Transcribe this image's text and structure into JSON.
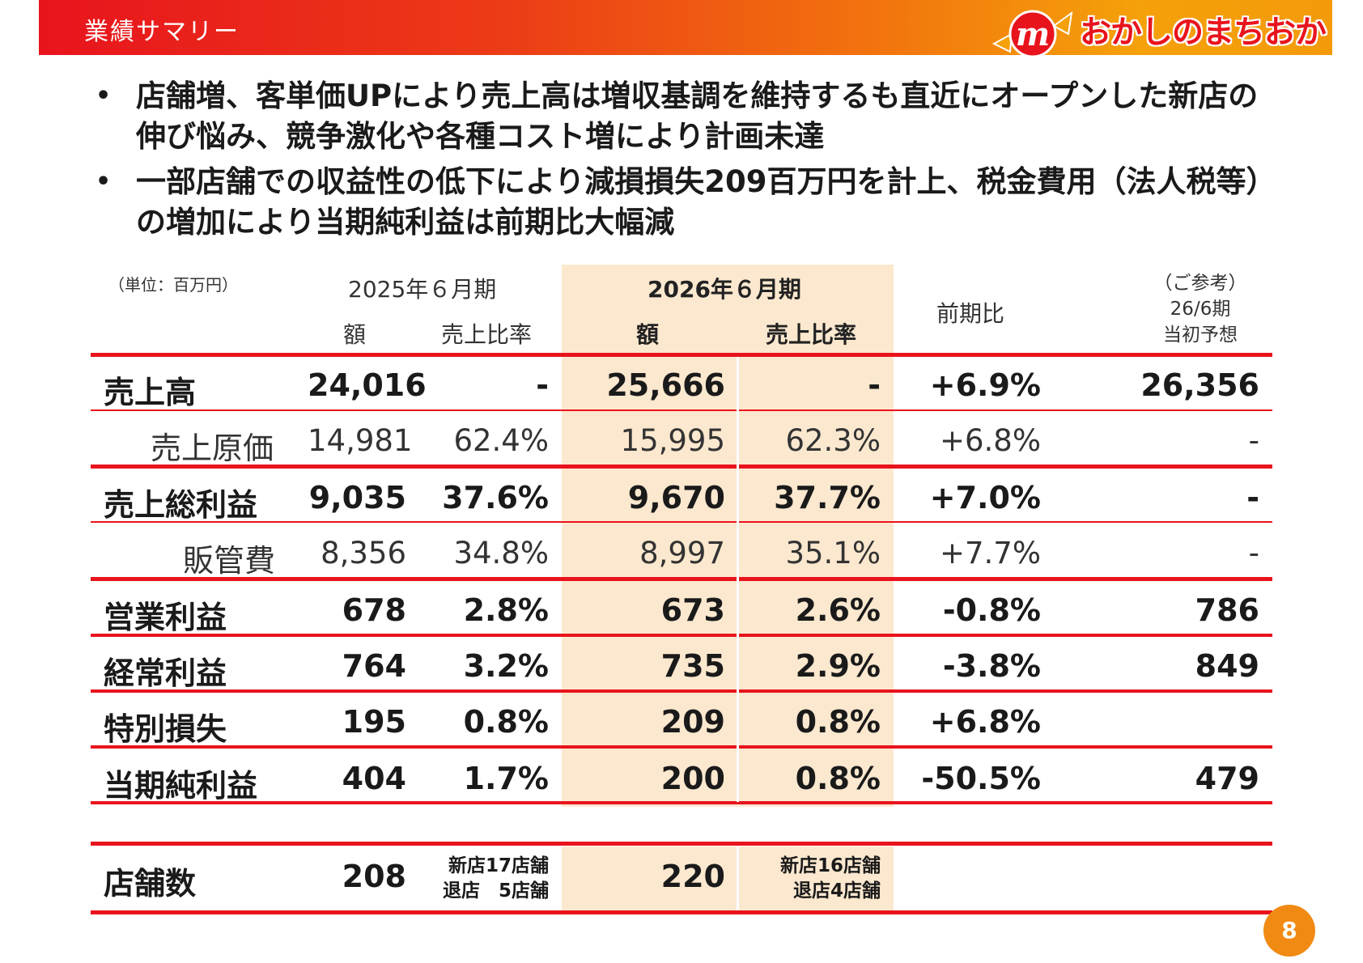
{
  "header": {
    "title": "業績サマリー",
    "logo_text": "おかしのまちおか",
    "logo_mark": "m"
  },
  "bullets": [
    "店舗増、客単価UPにより売上高は増収基調を維持するも直近にオープンした新店の伸び悩み、競争激化や各種コスト増により計画未達",
    "一部店舗での収益性の低下により減損損失209百万円を計上、税金費用（法人税等）の増加により当期純利益は前期比大幅減"
  ],
  "table": {
    "unit": "（単位：百万円）",
    "prev_period": "2025年６月期",
    "curr_period": "2026年６月期",
    "col_amount": "額",
    "col_ratio": "売上比率",
    "col_yoy": "前期比",
    "ref_line1": "（ご参考）",
    "ref_line2": "26/6期",
    "ref_line3": "当初予想",
    "rows": [
      {
        "label": "売上高",
        "prev_amt": "24,016",
        "prev_ratio": "-",
        "curr_amt": "25,666",
        "curr_ratio": "-",
        "yoy": "+6.9%",
        "forecast": "26,356"
      },
      {
        "label": "売上原価",
        "prev_amt": "14,981",
        "prev_ratio": "62.4%",
        "curr_amt": "15,995",
        "curr_ratio": "62.3%",
        "yoy": "+6.8%",
        "forecast": "-"
      },
      {
        "label": "売上総利益",
        "prev_amt": "9,035",
        "prev_ratio": "37.6%",
        "curr_amt": "9,670",
        "curr_ratio": "37.7%",
        "yoy": "+7.0%",
        "forecast": "-"
      },
      {
        "label": "販管費",
        "prev_amt": "8,356",
        "prev_ratio": "34.8%",
        "curr_amt": "8,997",
        "curr_ratio": "35.1%",
        "yoy": "+7.7%",
        "forecast": "-"
      },
      {
        "label": "営業利益",
        "prev_amt": "678",
        "prev_ratio": "2.8%",
        "curr_amt": "673",
        "curr_ratio": "2.6%",
        "yoy": "-0.8%",
        "forecast": "786"
      },
      {
        "label": "経常利益",
        "prev_amt": "764",
        "prev_ratio": "3.2%",
        "curr_amt": "735",
        "curr_ratio": "2.9%",
        "yoy": "-3.8%",
        "forecast": "849"
      },
      {
        "label": "特別損失",
        "prev_amt": "195",
        "prev_ratio": "0.8%",
        "curr_amt": "209",
        "curr_ratio": "0.8%",
        "yoy": "+6.8%",
        "forecast": ""
      },
      {
        "label": "当期純利益",
        "prev_amt": "404",
        "prev_ratio": "1.7%",
        "curr_amt": "200",
        "curr_ratio": "0.8%",
        "yoy": "-50.5%",
        "forecast": "479"
      }
    ],
    "stores": {
      "label": "店舗数",
      "prev_count": "208",
      "prev_note1": "新店17店舗",
      "prev_note2": "退店　5店舗",
      "curr_count": "220",
      "curr_note1": "新店16店舗",
      "curr_note2": "退店4店舗"
    }
  },
  "page_number": "8",
  "colors": {
    "accent_red": "#e8141d",
    "accent_orange": "#f5a10a",
    "highlight": "#fce8cf"
  }
}
